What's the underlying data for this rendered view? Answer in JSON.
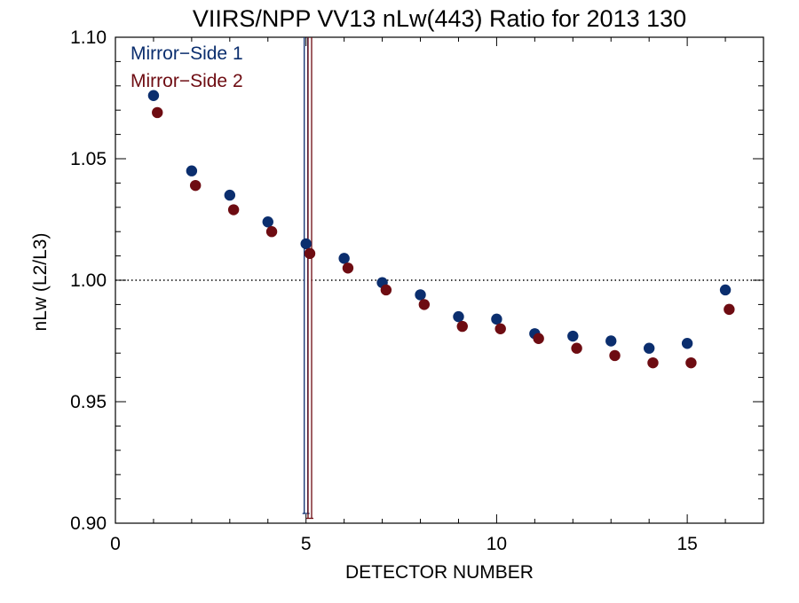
{
  "chart_data": {
    "type": "scatter",
    "title": "VIIRS/NPP VV13 nLw(443) Ratio for 2013 130",
    "xlabel": "DETECTOR NUMBER",
    "ylabel": "nLw (L2/L3)",
    "xlim": [
      0,
      17
    ],
    "ylim": [
      0.9,
      1.1
    ],
    "xticks": [
      0,
      5,
      10,
      15
    ],
    "xtick_labels": [
      "0",
      "5",
      "10",
      "15"
    ],
    "yticks": [
      0.9,
      0.95,
      1.0,
      1.05,
      1.1
    ],
    "ytick_labels": [
      "0.90",
      "0.95",
      "1.00",
      "1.05",
      "1.10"
    ],
    "reference_line": {
      "y": 1.0,
      "style": "dotted"
    },
    "legend_position": "top-left",
    "series": [
      {
        "name": "Mirror−Side 1",
        "color": "#0b2e6e",
        "x": [
          1,
          2,
          3,
          4,
          5,
          6,
          7,
          8,
          9,
          10,
          11,
          12,
          13,
          14,
          15,
          16
        ],
        "y": [
          1.076,
          1.045,
          1.035,
          1.024,
          1.015,
          1.009,
          0.999,
          0.994,
          0.985,
          0.984,
          0.978,
          0.977,
          0.975,
          0.972,
          0.974,
          0.996
        ],
        "error_bar": {
          "x": 5,
          "low": 0.904,
          "high": 1.1
        }
      },
      {
        "name": "Mirror−Side 2",
        "color": "#6e0c12",
        "x": [
          1.1,
          2.1,
          3.1,
          4.1,
          5.1,
          6.1,
          7.1,
          8.1,
          9.1,
          10.1,
          11.1,
          12.1,
          13.1,
          14.1,
          15.1,
          16.1
        ],
        "y": [
          1.069,
          1.039,
          1.029,
          1.02,
          1.011,
          1.005,
          0.996,
          0.99,
          0.981,
          0.98,
          0.976,
          0.972,
          0.969,
          0.966,
          0.966,
          0.988
        ],
        "error_bar": {
          "x": 5.1,
          "low": 0.902,
          "high": 1.1
        }
      }
    ]
  }
}
